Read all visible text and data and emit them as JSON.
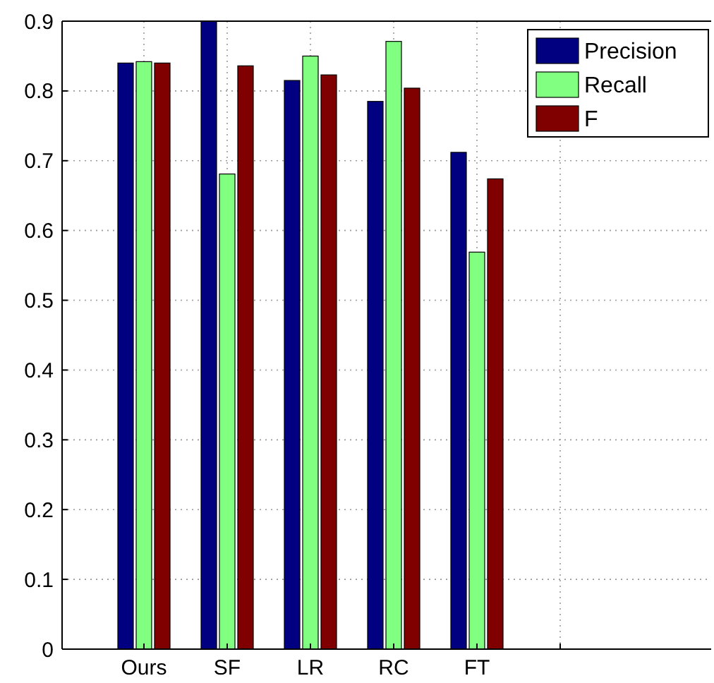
{
  "chart_data": {
    "type": "bar",
    "categories": [
      "Ours",
      "SF",
      "LR",
      "RC",
      "FT",
      null
    ],
    "series": [
      {
        "name": "Precision",
        "color": "#000080",
        "values": [
          0.84,
          0.9,
          0.815,
          0.785,
          0.712,
          null
        ]
      },
      {
        "name": "Recall",
        "color": "#80ff80",
        "values": [
          0.842,
          0.681,
          0.85,
          0.871,
          0.569,
          null
        ]
      },
      {
        "name": "F",
        "color": "#800000",
        "values": [
          0.84,
          0.836,
          0.823,
          0.804,
          0.674,
          null
        ]
      }
    ],
    "ylim": [
      0,
      0.9
    ],
    "yticks": [
      0,
      0.1,
      0.2,
      0.3,
      0.4,
      0.5,
      0.6,
      0.7,
      0.8,
      0.9
    ],
    "grid": true,
    "legend": "top right"
  }
}
